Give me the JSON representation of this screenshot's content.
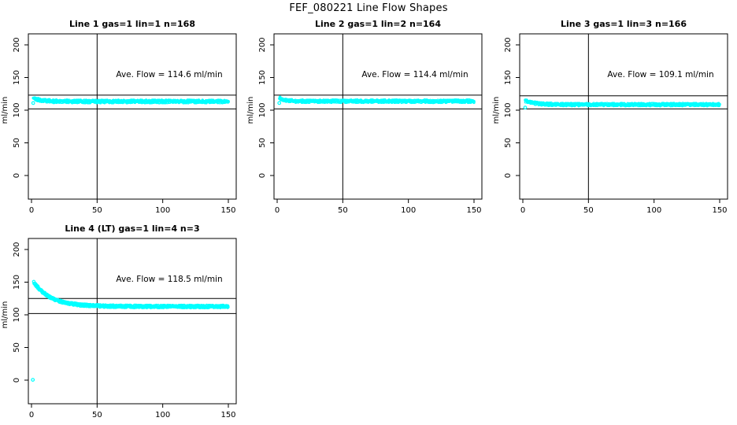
{
  "page_title": "FEF_080221  Line Flow Shapes",
  "colors": {
    "points": "#00ffff",
    "axis": "#000000",
    "background": "#ffffff",
    "text": "#000000"
  },
  "chart_data": {
    "type": "scatter",
    "title": "FEF_080221  Line Flow Shapes",
    "layout": {
      "rows": 2,
      "cols": 3,
      "grid": "off",
      "x_ticks": [
        0,
        50,
        100,
        150
      ],
      "y_ticks": [
        0,
        50,
        100,
        150,
        200
      ],
      "xlim": [
        -6,
        156
      ],
      "ylim": [
        -36,
        217
      ],
      "ylabel": "ml/min",
      "xlabel": ""
    },
    "panels": [
      {
        "title": "Line 1 gas=1 lin=1 n=168",
        "annotation": "Ave. Flow =  114.6  ml/min",
        "ave_flow_ml_min": 114.6,
        "n_traces": 168,
        "vline_x": 50,
        "hlines": [
          123,
          102
        ],
        "series_model": {
          "x_start": 1.4,
          "x_end": 150,
          "base": 113.4,
          "amplitude": 5.0,
          "tau": 6,
          "jitter": 2.2,
          "n_points": 650,
          "point_radius": 1.3,
          "seed": 11
        },
        "extra_points": [
          [
            1.3,
            111.0
          ]
        ]
      },
      {
        "title": "Line 2 gas=1 lin=2 n=164",
        "annotation": "Ave. Flow =  114.4  ml/min",
        "ave_flow_ml_min": 114.4,
        "n_traces": 164,
        "vline_x": 50,
        "hlines": [
          123,
          102
        ],
        "series_model": {
          "x_start": 1.8,
          "x_end": 150,
          "base": 113.7,
          "amplitude": 5.2,
          "tau": 4.5,
          "jitter": 2.1,
          "n_points": 650,
          "point_radius": 1.3,
          "seed": 22
        },
        "extra_points": [
          [
            1.6,
            111.0
          ]
        ]
      },
      {
        "title": "Line 3 gas=1 lin=3 n=166",
        "annotation": "Ave. Flow =  109.1  ml/min",
        "ave_flow_ml_min": 109.1,
        "n_traces": 166,
        "vline_x": 50,
        "hlines": [
          122,
          102
        ],
        "series_model": {
          "x_start": 1.8,
          "x_end": 150,
          "base": 108.6,
          "amplitude": 6.0,
          "tau": 7,
          "jitter": 2.0,
          "n_points": 650,
          "point_radius": 1.3,
          "seed": 33
        },
        "extra_points": [
          [
            1.8,
            104.0
          ]
        ]
      },
      {
        "title": "Line 4 (LT) gas=1 lin=4 n=3",
        "annotation": "Ave. Flow =  118.5  ml/min",
        "ave_flow_ml_min": 118.5,
        "n_traces": 3,
        "vline_x": 50,
        "hlines": [
          125,
          102
        ],
        "series_model": {
          "x_start": 1.8,
          "x_end": 150,
          "base": 112.8,
          "amplitude": 37.0,
          "tau": 13,
          "jitter": 1.6,
          "n_points": 600,
          "point_radius": 1.7,
          "seed": 44
        },
        "extra_points": [
          [
            1.0,
            0.5
          ]
        ]
      }
    ]
  }
}
